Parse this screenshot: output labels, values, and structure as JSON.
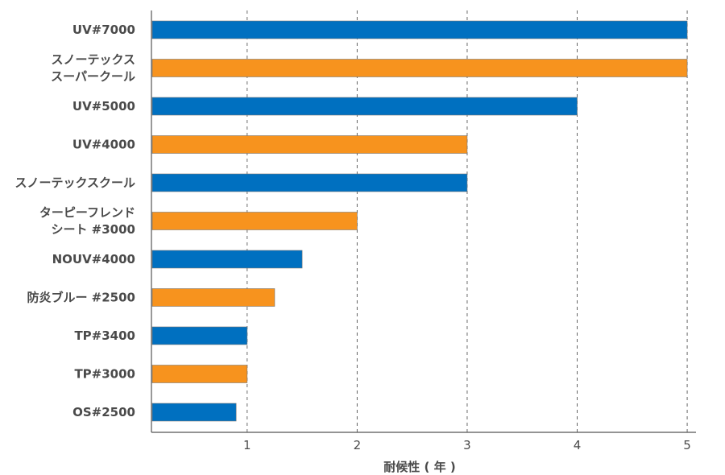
{
  "chart_data": {
    "type": "bar",
    "orientation": "horizontal",
    "categories": [
      [
        "UV#7000"
      ],
      [
        "スノーテックス",
        "スーパークール"
      ],
      [
        "UV#5000"
      ],
      [
        "UV#4000"
      ],
      [
        "スノーテックスクール"
      ],
      [
        "ターピーフレンド",
        "シート #3000"
      ],
      [
        "NOUV#4000"
      ],
      [
        "防炎ブルー #2500"
      ],
      [
        "TP#3400"
      ],
      [
        "TP#3000"
      ],
      [
        "OS#2500"
      ]
    ],
    "values": [
      5,
      5,
      4,
      3,
      3,
      2,
      1.5,
      1.25,
      1,
      1,
      0.9
    ],
    "bar_colors": [
      "#0070c0",
      "#f7931e",
      "#0070c0",
      "#f7931e",
      "#0070c0",
      "#f7931e",
      "#0070c0",
      "#f7931e",
      "#0070c0",
      "#f7931e",
      "#0070c0"
    ],
    "xlabel": "耐候性 ( 年 )",
    "xticks": [
      1,
      2,
      3,
      4,
      5
    ],
    "xlim": [
      0.13,
      5.08
    ],
    "grid": "vertical-dashed"
  }
}
